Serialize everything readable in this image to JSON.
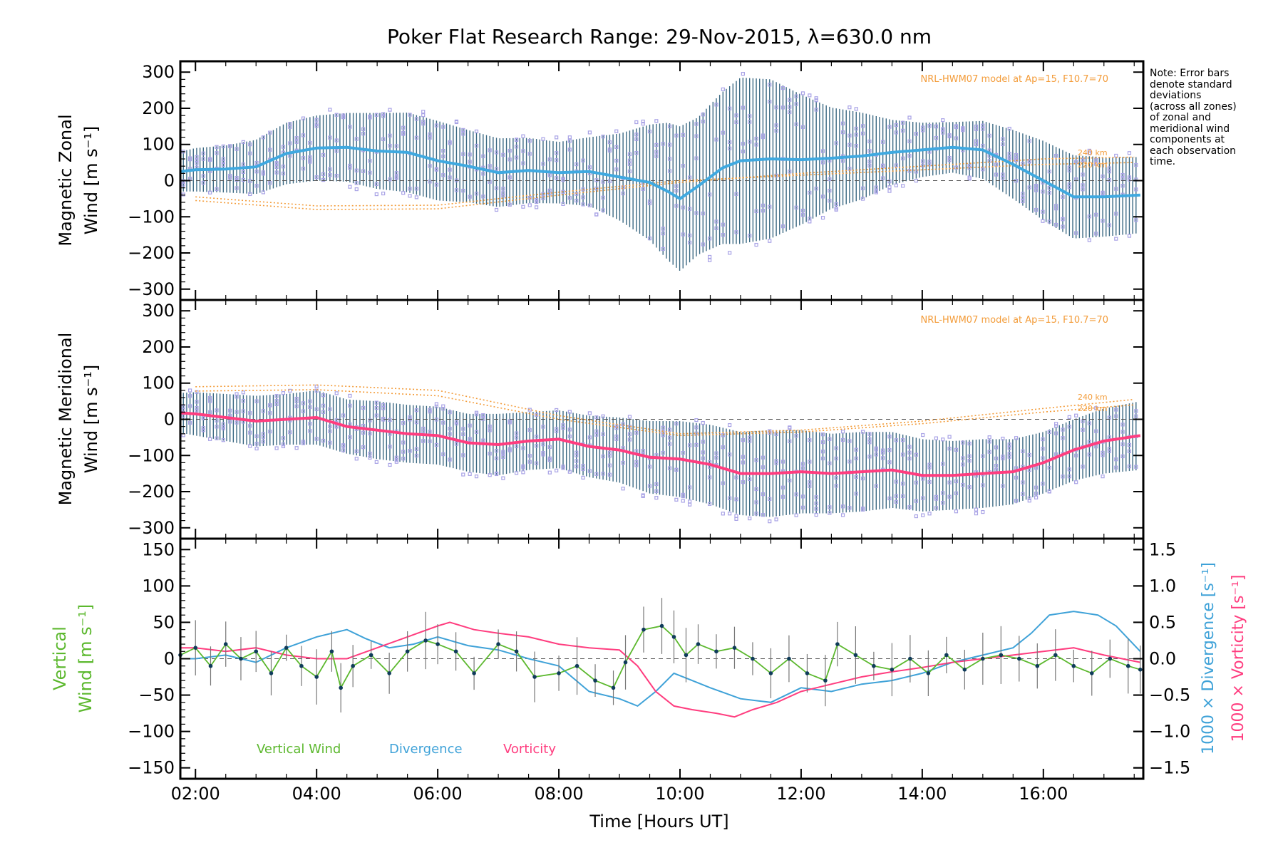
{
  "figure": {
    "title": "Poker Flat Research Range: 29-Nov-2015, λ=630.0 nm",
    "note": [
      "Note: Error bars",
      "denote standard",
      "deviations",
      "(across all zones)",
      "of zonal and",
      "meridional wind",
      "components at",
      "each observation",
      "time."
    ],
    "xlabel": "Time [Hours UT]",
    "x_ticks": [
      "02:00",
      "04:00",
      "06:00",
      "08:00",
      "10:00",
      "12:00",
      "14:00",
      "16:00"
    ],
    "colors": {
      "zonal_mean": "#3fa9e0",
      "meridional_mean": "#ff3d7f",
      "error_bar": "#1a4f6e",
      "zone_points": "#a9a3e6",
      "model": "#f39c3a",
      "vertical_wind": "#5cb82e",
      "divergence": "#3fa2d8",
      "vorticity": "#ff3d7f",
      "vertical_points": "#0f3b5a"
    }
  },
  "panels": {
    "zonal": {
      "ylabel_line1": "Magnetic Zonal",
      "ylabel_line2": "Wind [m s⁻¹]",
      "y_ticks": [
        "300",
        "200",
        "100",
        "0",
        "−100",
        "−200",
        "−300"
      ],
      "model_label": "NRL-HWM07 model at Ap=15, F10.7=70",
      "model_alt_labels": [
        "240 km",
        "220 km"
      ]
    },
    "meridional": {
      "ylabel_line1": "Magnetic Meridional",
      "ylabel_line2": "Wind [m s⁻¹]",
      "y_ticks": [
        "300",
        "200",
        "100",
        "0",
        "−100",
        "−200",
        "−300"
      ],
      "model_label": "NRL-HWM07 model at Ap=15, F10.7=70",
      "model_alt_labels": [
        "240 km",
        "220 km"
      ]
    },
    "vertical": {
      "ylabel_line1": "Vertical",
      "ylabel_line2": "Wind [m s⁻¹]",
      "y_ticks": [
        "150",
        "100",
        "50",
        "0",
        "−50",
        "−100",
        "−150"
      ],
      "right_ticks": [
        "1.5",
        "1.0",
        "0.5",
        "0.0",
        "−0.5",
        "−1.0",
        "−1.5"
      ],
      "right_label_div": "1000 × Divergence [s⁻¹]",
      "right_label_vort": "1000 × Vorticity [s⁻¹]",
      "legend": [
        "Vertical Wind",
        "Divergence",
        "Vorticity"
      ]
    }
  },
  "chart_data": [
    {
      "type": "line",
      "panel": "zonal",
      "xlim": [
        1.75,
        17.65
      ],
      "ylim": [
        -330,
        330
      ],
      "grid": false,
      "series": [
        {
          "values_kind": "mean",
          "x": [
            1.75,
            2.0,
            2.5,
            3.0,
            3.5,
            4.0,
            4.5,
            5.0,
            5.5,
            6.0,
            6.5,
            7.0,
            7.5,
            8.0,
            8.5,
            9.0,
            9.5,
            9.8,
            10.0,
            10.3,
            10.7,
            11.0,
            11.5,
            12.0,
            12.5,
            13.0,
            13.5,
            14.0,
            14.5,
            15.0,
            15.5,
            16.0,
            16.5,
            17.0,
            17.6
          ],
          "y": [
            25,
            30,
            32,
            38,
            75,
            90,
            92,
            82,
            78,
            55,
            40,
            22,
            28,
            22,
            25,
            10,
            -5,
            -30,
            -50,
            -15,
            35,
            55,
            60,
            58,
            62,
            68,
            78,
            85,
            92,
            85,
            45,
            0,
            -45,
            -45,
            -40
          ],
          "std": [
            55,
            60,
            65,
            75,
            85,
            90,
            95,
            105,
            110,
            110,
            100,
            95,
            90,
            85,
            95,
            120,
            160,
            190,
            200,
            190,
            210,
            230,
            220,
            180,
            140,
            120,
            90,
            75,
            70,
            80,
            95,
            110,
            115,
            110,
            105
          ]
        },
        {
          "values_kind": "model_240km",
          "x": [
            2,
            4,
            6,
            8,
            10,
            12,
            14,
            16,
            17.5
          ],
          "y": [
            -55,
            -80,
            -78,
            -40,
            -5,
            20,
            40,
            60,
            65
          ]
        },
        {
          "values_kind": "model_220km",
          "x": [
            2,
            4,
            6,
            8,
            10,
            12,
            14,
            16,
            17.5
          ],
          "y": [
            -45,
            -70,
            -68,
            -32,
            0,
            15,
            30,
            45,
            50
          ]
        }
      ]
    },
    {
      "type": "line",
      "panel": "meridional",
      "xlim": [
        1.75,
        17.65
      ],
      "ylim": [
        -330,
        330
      ],
      "grid": false,
      "series": [
        {
          "values_kind": "mean",
          "x": [
            1.75,
            2.0,
            2.5,
            3.0,
            3.5,
            4.0,
            4.5,
            5.0,
            5.5,
            6.0,
            6.5,
            7.0,
            7.5,
            8.0,
            8.5,
            9.0,
            9.5,
            10.0,
            10.5,
            11.0,
            11.5,
            12.0,
            12.5,
            13.0,
            13.5,
            14.0,
            14.5,
            15.0,
            15.5,
            16.0,
            16.5,
            17.0,
            17.6
          ],
          "y": [
            18,
            15,
            5,
            -5,
            0,
            5,
            -20,
            -30,
            -40,
            -45,
            -65,
            -70,
            -60,
            -55,
            -75,
            -85,
            -105,
            -110,
            -125,
            -150,
            -150,
            -145,
            -150,
            -145,
            -140,
            -155,
            -155,
            -150,
            -145,
            -120,
            -85,
            -60,
            -45
          ],
          "std": [
            55,
            60,
            65,
            70,
            70,
            75,
            75,
            80,
            80,
            80,
            80,
            85,
            80,
            80,
            85,
            90,
            100,
            105,
            110,
            115,
            120,
            115,
            110,
            110,
            105,
            100,
            95,
            95,
            90,
            85,
            85,
            90,
            95
          ]
        },
        {
          "values_kind": "model_240km",
          "x": [
            2,
            4,
            6,
            8,
            10,
            12,
            14,
            16,
            17.5
          ],
          "y": [
            90,
            95,
            80,
            10,
            -40,
            -30,
            -5,
            30,
            55
          ]
        },
        {
          "values_kind": "model_220km",
          "x": [
            2,
            4,
            6,
            8,
            10,
            12,
            14,
            16,
            17.5
          ],
          "y": [
            78,
            82,
            65,
            0,
            -45,
            -35,
            -12,
            20,
            40
          ]
        }
      ]
    },
    {
      "type": "line",
      "panel": "vertical",
      "xlim": [
        1.75,
        17.65
      ],
      "ylim": [
        -165,
        165
      ],
      "y2lim": [
        -1.65,
        1.65
      ],
      "grid": false,
      "series": [
        {
          "name": "Vertical Wind",
          "x": [
            1.75,
            2.0,
            2.25,
            2.5,
            2.75,
            3.0,
            3.25,
            3.5,
            3.75,
            4.0,
            4.25,
            4.4,
            4.6,
            4.9,
            5.2,
            5.5,
            5.8,
            6.0,
            6.3,
            6.6,
            7.0,
            7.3,
            7.6,
            8.0,
            8.3,
            8.6,
            8.9,
            9.1,
            9.4,
            9.7,
            9.9,
            10.1,
            10.3,
            10.6,
            10.9,
            11.2,
            11.5,
            11.8,
            12.1,
            12.4,
            12.6,
            12.9,
            13.2,
            13.5,
            13.8,
            14.1,
            14.4,
            14.7,
            15.0,
            15.3,
            15.6,
            15.9,
            16.2,
            16.5,
            16.8,
            17.1,
            17.4,
            17.6
          ],
          "y": [
            5,
            15,
            -10,
            20,
            0,
            10,
            -20,
            15,
            -10,
            -25,
            10,
            -40,
            -10,
            5,
            -20,
            10,
            25,
            20,
            10,
            -20,
            20,
            10,
            -25,
            -20,
            -10,
            -30,
            -40,
            -5,
            40,
            45,
            30,
            5,
            20,
            10,
            15,
            0,
            -20,
            0,
            -20,
            -30,
            20,
            5,
            -10,
            -15,
            0,
            -20,
            5,
            -15,
            0,
            5,
            0,
            -10,
            5,
            -10,
            -20,
            0,
            -10,
            -15
          ]
        },
        {
          "name": "Divergence",
          "x": [
            1.75,
            2.0,
            2.5,
            3.0,
            3.5,
            4.0,
            4.5,
            4.8,
            5.2,
            5.6,
            6.0,
            6.5,
            7.0,
            7.5,
            8.0,
            8.5,
            9.0,
            9.3,
            9.6,
            9.9,
            10.2,
            10.5,
            11.0,
            11.5,
            12.0,
            12.5,
            13.0,
            13.5,
            14.0,
            14.5,
            15.0,
            15.5,
            15.8,
            16.1,
            16.5,
            16.9,
            17.2,
            17.6
          ],
          "y": [
            0.0,
            0.0,
            0.05,
            -0.05,
            0.15,
            0.3,
            0.4,
            0.28,
            0.15,
            0.2,
            0.3,
            0.18,
            0.12,
            0.0,
            -0.1,
            -0.45,
            -0.55,
            -0.65,
            -0.45,
            -0.2,
            -0.3,
            -0.4,
            -0.55,
            -0.6,
            -0.4,
            -0.45,
            -0.35,
            -0.3,
            -0.2,
            -0.05,
            0.05,
            0.15,
            0.35,
            0.6,
            0.65,
            0.6,
            0.45,
            0.1
          ]
        },
        {
          "name": "Vorticity",
          "x": [
            1.75,
            2.0,
            2.5,
            3.0,
            3.5,
            4.0,
            4.5,
            5.0,
            5.5,
            6.0,
            6.2,
            6.6,
            7.0,
            7.5,
            8.0,
            8.5,
            9.0,
            9.3,
            9.6,
            9.9,
            10.2,
            10.6,
            10.9,
            11.2,
            11.6,
            12.0,
            12.5,
            13.0,
            13.5,
            14.0,
            14.5,
            15.0,
            15.5,
            16.0,
            16.5,
            17.0,
            17.6
          ],
          "y": [
            0.15,
            0.15,
            0.1,
            0.15,
            0.05,
            0.0,
            0.0,
            0.15,
            0.3,
            0.45,
            0.5,
            0.4,
            0.35,
            0.3,
            0.2,
            0.15,
            0.12,
            -0.1,
            -0.45,
            -0.65,
            -0.7,
            -0.75,
            -0.8,
            -0.7,
            -0.6,
            -0.45,
            -0.35,
            -0.25,
            -0.18,
            -0.12,
            -0.05,
            0.0,
            0.05,
            0.1,
            0.15,
            0.05,
            -0.05
          ]
        }
      ]
    }
  ]
}
